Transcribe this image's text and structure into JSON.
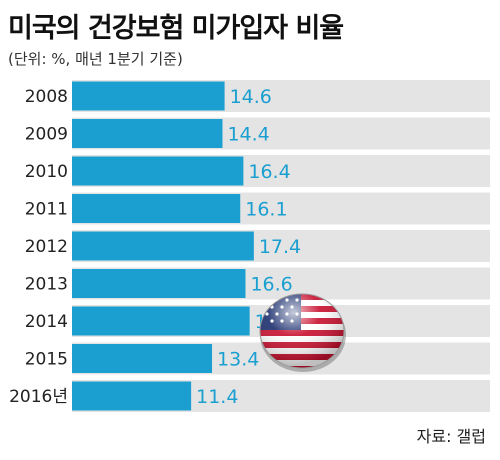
{
  "header": {
    "title": "미국의 건강보험 미가입자 비율",
    "subtitle": "(단위: %, 매년 1분기 기준)"
  },
  "footer": {
    "source": "자료: 갤럽"
  },
  "colors": {
    "bar": "#1a9fd0",
    "track": "#e4e4e4",
    "value_text": "#1a9fd0",
    "label_text": "#222222"
  },
  "chart_data": {
    "type": "bar",
    "orientation": "horizontal",
    "categories": [
      "2008",
      "2009",
      "2010",
      "2011",
      "2012",
      "2013",
      "2014",
      "2015",
      "2016년"
    ],
    "values": [
      14.6,
      14.4,
      16.4,
      16.1,
      17.4,
      16.6,
      17.0,
      13.4,
      11.4
    ],
    "value_labels": [
      "14.6",
      "14.4",
      "16.4",
      "16.1",
      "17.4",
      "16.6",
      "17.0",
      "13.4",
      "11.4"
    ],
    "title": "미국의 건강보험 미가입자 비율",
    "subtitle": "(단위: %, 매년 1분기 기준)",
    "xlabel": "",
    "ylabel": "",
    "grid": false,
    "legend": "none"
  },
  "decoration": {
    "icon": "us-flag-icon"
  }
}
